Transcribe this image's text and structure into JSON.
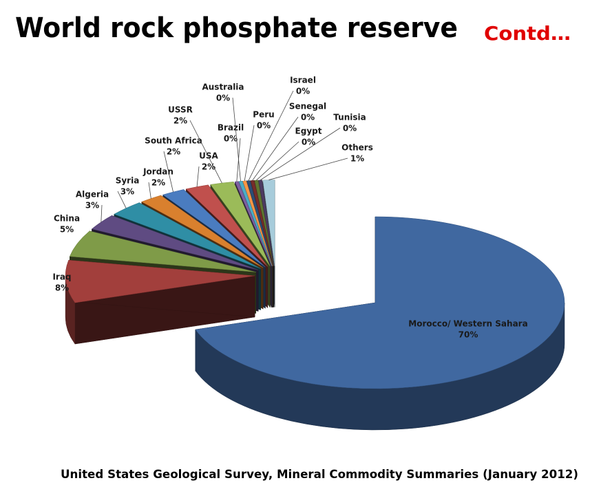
{
  "chart_data": {
    "type": "pie3d",
    "title": "World rock phosphate reserve",
    "annotation": "Contd…",
    "source": "United States Geological Survey, Mineral Commodity Summaries (January 2012)",
    "categories": [
      "Morocco/ Western Sahara",
      "Iraq",
      "China",
      "Algeria",
      "Syria",
      "Jordan",
      "South Africa",
      "USA",
      "USSR",
      "Brazil",
      "Australia",
      "Peru",
      "Israel",
      "Senegal",
      "Egypt",
      "Tunisia",
      "Others"
    ],
    "values": [
      70,
      8,
      5,
      3,
      3,
      2,
      2,
      2,
      2,
      0.3,
      0.3,
      0.3,
      0.3,
      0.3,
      0.3,
      0.3,
      1
    ],
    "value_labels": [
      "70%",
      "8%",
      "5%",
      "3%",
      "3%",
      "2%",
      "2%",
      "2%",
      "2%",
      "0%",
      "0%",
      "0%",
      "0%",
      "0%",
      "0%",
      "0%",
      "1%"
    ],
    "colors": [
      "#4068a0",
      "#a23f3c",
      "#7f9b48",
      "#5f4b82",
      "#2f8ea5",
      "#d9802e",
      "#4a7cc0",
      "#c0504d",
      "#9bbb59",
      "#7d60a0",
      "#4bacc6",
      "#f79646",
      "#2c4d75",
      "#772c2a",
      "#5f7530",
      "#4d3b62",
      "#a7ccdb"
    ]
  }
}
